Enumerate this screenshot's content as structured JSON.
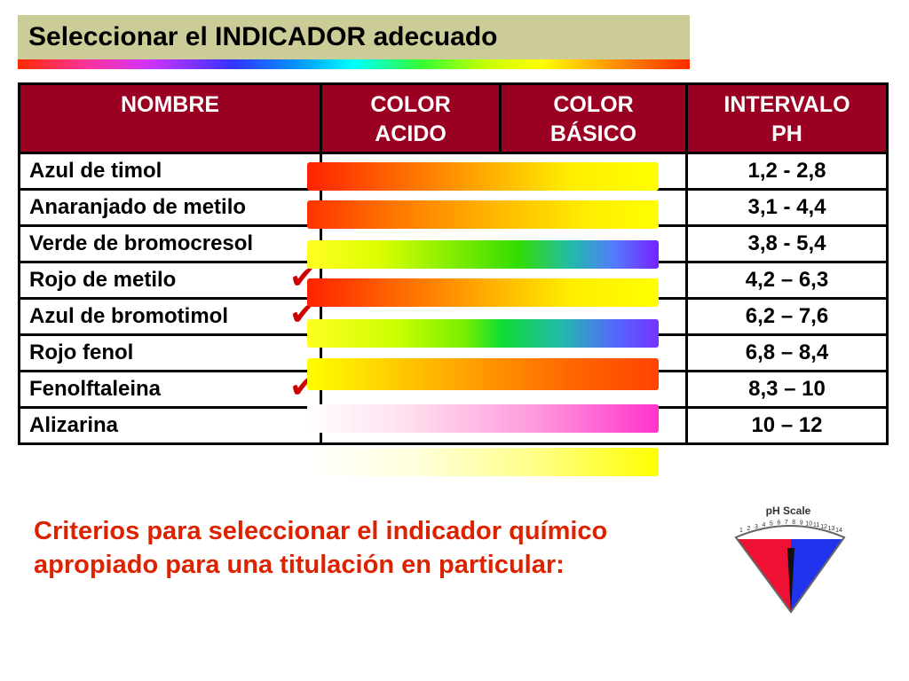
{
  "title": "Seleccionar el INDICADOR adecuado",
  "table": {
    "headers": {
      "name": "NOMBRE",
      "acid_l1": "COLOR",
      "acid_l2": "ACIDO",
      "basic_l1": "COLOR",
      "basic_l2": "BÁSICO",
      "range_l1": "INTERVALO",
      "range_l2": "PH"
    },
    "rows": [
      {
        "name": "Azul de timol",
        "range": "1,2 - 2,8"
      },
      {
        "name": "Anaranjado de metilo",
        "range": "3,1 - 4,4"
      },
      {
        "name": "Verde de bromocresol",
        "range": "3,8 - 5,4"
      },
      {
        "name": "Rojo de metilo",
        "range": "4,2 – 6,3"
      },
      {
        "name": "Azul de bromotimol",
        "range": "6,2 – 7,6"
      },
      {
        "name": "Rojo fenol",
        "range": "6,8 – 8,4"
      },
      {
        "name": "Fenolftaleina",
        "range": "8,3 – 10"
      },
      {
        "name": "Alizarina",
        "range": "10 – 12"
      }
    ]
  },
  "criteria": {
    "line1": "Criterios para seleccionar el indicador químico",
    "line2": "apropiado para una titulación en particular:"
  },
  "ph_scale": {
    "label": "pH Scale",
    "ticks": [
      "1",
      "2",
      "3",
      "4",
      "5",
      "6",
      "7",
      "8",
      "9",
      "10",
      "11",
      "12",
      "13",
      "14"
    ]
  },
  "colors": {
    "header_bg": "#990022",
    "title_bg": "#cccc99",
    "check": "#cc0000",
    "criteria_text": "#dd2200"
  }
}
